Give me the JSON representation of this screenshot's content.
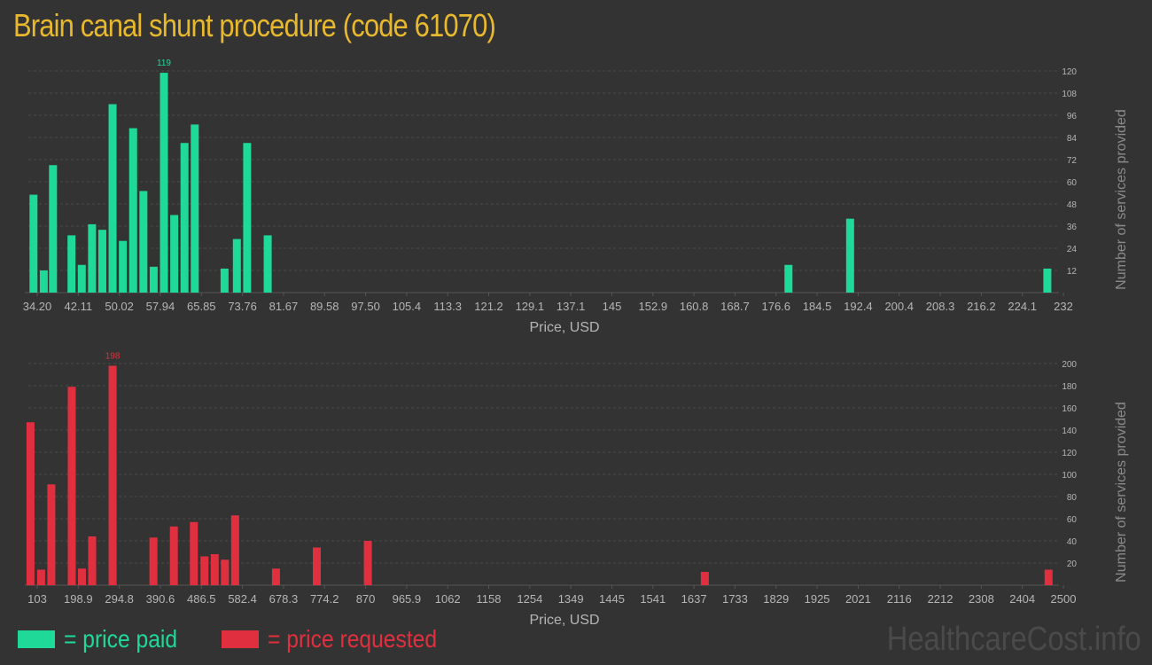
{
  "title": "Brain canal shunt procedure (code 61070)",
  "legend": {
    "paid_label": "= price paid",
    "requested_label": "= price requested"
  },
  "watermark": "HealthcareCost.info",
  "colors": {
    "paid": "#1fd999",
    "requested": "#e03040",
    "title": "#e8b92e",
    "background": "#333333",
    "axis_text": "#b5b5b5",
    "grid": "#4a4a4a"
  },
  "chart_data": [
    {
      "type": "bar",
      "name": "price paid",
      "xlabel": "Price, USD",
      "ylabel": "Number of services provided",
      "xlim": [
        33.2,
        233
      ],
      "ylim": [
        0,
        120
      ],
      "x_ticks": [
        "34.20",
        "42.11",
        "50.02",
        "57.94",
        "65.85",
        "73.76",
        "81.67",
        "89.58",
        "97.50",
        "105.4",
        "113.3",
        "121.2",
        "129.1",
        "137.1",
        "145",
        "152.9",
        "160.8",
        "168.7",
        "176.6",
        "184.5",
        "192.4",
        "200.4",
        "208.3",
        "216.2",
        "224.1",
        "232"
      ],
      "y_ticks": [
        12,
        24,
        36,
        48,
        60,
        72,
        84,
        96,
        108,
        120
      ],
      "grid": true,
      "peak_label": "119",
      "x": [
        34.2,
        36.2,
        38.0,
        41.6,
        43.6,
        45.6,
        47.6,
        49.6,
        51.6,
        53.6,
        55.6,
        57.6,
        59.6,
        61.6,
        63.6,
        65.6,
        67.6,
        71.4,
        73.8,
        75.8,
        79.8,
        181.2,
        193.2,
        231.6
      ],
      "values": [
        53,
        12,
        69,
        31,
        15,
        37,
        34,
        102,
        28,
        89,
        55,
        14,
        119,
        42,
        81,
        91,
        0,
        13,
        29,
        81,
        31,
        15,
        40,
        13
      ]
    },
    {
      "type": "bar",
      "name": "price requested",
      "xlabel": "Price, USD",
      "ylabel": "Number of services provided",
      "xlim": [
        98,
        2510
      ],
      "ylim": [
        0,
        200
      ],
      "x_ticks": [
        "103",
        "198.9",
        "294.8",
        "390.6",
        "486.5",
        "582.4",
        "678.3",
        "774.2",
        "870",
        "965.9",
        "1062",
        "1158",
        "1254",
        "1349",
        "1445",
        "1541",
        "1637",
        "1733",
        "1829",
        "1925",
        "2021",
        "2116",
        "2212",
        "2308",
        "2404",
        "2500"
      ],
      "y_ticks": [
        20,
        40,
        60,
        80,
        100,
        120,
        140,
        160,
        180,
        200
      ],
      "grid": true,
      "peak_label": "198",
      "x": [
        103,
        128,
        152,
        200,
        224,
        248,
        296,
        392,
        440,
        487,
        512,
        536,
        560,
        584,
        680,
        776,
        896,
        1688,
        2496
      ],
      "values": [
        147,
        14,
        91,
        179,
        15,
        44,
        198,
        43,
        53,
        57,
        26,
        28,
        23,
        63,
        15,
        34,
        40,
        12,
        14
      ]
    }
  ]
}
